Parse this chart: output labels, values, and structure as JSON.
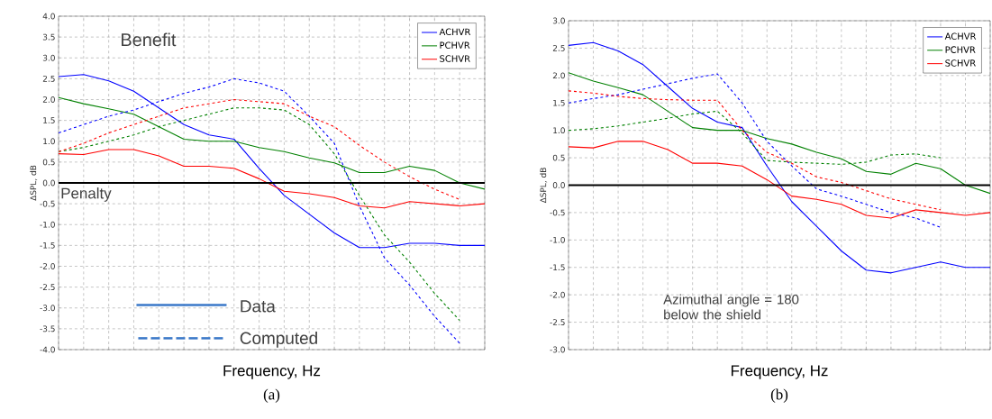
{
  "chart_data": [
    {
      "type": "line",
      "title": "(a)",
      "xlabel": "Frequency, Hz",
      "ylabel": "ΔSPL, dB",
      "categories": [
        null,
        null,
        null,
        null,
        null,
        null,
        null,
        null,
        null,
        null,
        null,
        null,
        null,
        null,
        null,
        null,
        null,
        null
      ],
      "series": [
        {
          "name": "ACHVR",
          "color": "#0000ff",
          "line_style": "solid",
          "values": [
            2.55,
            2.6,
            2.45,
            2.2,
            1.8,
            1.4,
            1.15,
            1.05,
            0.35,
            -0.3,
            -0.75,
            -1.2,
            -1.55,
            -1.55,
            -1.45,
            -1.45,
            -1.5,
            -1.5
          ]
        },
        {
          "name": "PCHVR",
          "color": "#008000",
          "line_style": "solid",
          "values": [
            2.05,
            1.9,
            1.78,
            1.65,
            1.35,
            1.05,
            1.0,
            1.0,
            0.85,
            0.75,
            0.6,
            0.48,
            0.25,
            0.25,
            0.4,
            0.3,
            0.0,
            -0.15
          ]
        },
        {
          "name": "SCHVR",
          "color": "#ff0000",
          "line_style": "solid",
          "values": [
            0.7,
            0.68,
            0.8,
            0.8,
            0.65,
            0.4,
            0.4,
            0.35,
            0.1,
            -0.2,
            -0.26,
            -0.35,
            -0.55,
            -0.6,
            -0.45,
            -0.5,
            -0.55,
            -0.5
          ]
        },
        {
          "color": "#0000ff",
          "line_style": "dashed",
          "values": [
            1.2,
            1.4,
            1.6,
            1.75,
            1.95,
            2.15,
            2.3,
            2.5,
            2.4,
            2.2,
            1.6,
            0.95,
            -0.55,
            -1.8,
            -2.45,
            -3.2,
            -3.85,
            null
          ]
        },
        {
          "color": "#008000",
          "line_style": "dashed",
          "values": [
            0.75,
            0.85,
            1.0,
            1.15,
            1.35,
            1.5,
            1.65,
            1.8,
            1.8,
            1.75,
            1.4,
            0.7,
            -0.3,
            -1.25,
            -1.9,
            -2.65,
            -3.3,
            null
          ]
        },
        {
          "color": "#ff0000",
          "line_style": "dashed",
          "values": [
            0.75,
            0.95,
            1.2,
            1.4,
            1.6,
            1.8,
            1.9,
            2.0,
            1.95,
            1.9,
            1.6,
            1.35,
            0.9,
            0.5,
            0.15,
            -0.15,
            -0.4,
            null
          ]
        }
      ],
      "ylim": [
        -4,
        4
      ],
      "yticks": [
        {
          "value": -4,
          "label": "-4.0"
        },
        {
          "value": -3.5,
          "label": "-3.5"
        },
        {
          "value": -3,
          "label": "-3.0"
        },
        {
          "value": -2.5,
          "label": "-2.5"
        },
        {
          "value": -2,
          "label": "-2.0"
        },
        {
          "value": -1.5,
          "label": "-1.5"
        },
        {
          "value": -1,
          "label": "-1.0"
        },
        {
          "value": -0.5,
          "label": "-0.5"
        },
        {
          "value": 0,
          "label": "0.0"
        },
        {
          "value": 0.5,
          "label": "0.5"
        },
        {
          "value": 1,
          "label": "1.0"
        },
        {
          "value": 1.5,
          "label": "1.5"
        },
        {
          "value": 2,
          "label": "2.0"
        },
        {
          "value": 2.5,
          "label": "2.5"
        },
        {
          "value": 3,
          "label": "3.0"
        },
        {
          "value": 3.5,
          "label": "3.5"
        },
        {
          "value": 4,
          "label": "4.0"
        }
      ],
      "tick_labels": "y",
      "grid": true,
      "legend": "top right",
      "ref_lines": [
        {
          "axis": "y",
          "value": 0,
          "color": "#000000"
        }
      ],
      "annotations": [
        "Benefit",
        "Penalty",
        "Data",
        "Computed"
      ]
    },
    {
      "type": "line",
      "title": "(b)",
      "xlabel": "Frequency, Hz",
      "ylabel": "ΔSPL, dB",
      "categories": [
        null,
        null,
        null,
        null,
        null,
        null,
        null,
        null,
        null,
        null,
        null,
        null,
        null,
        null,
        null,
        null,
        null,
        null
      ],
      "series": [
        {
          "name": "ACHVR",
          "color": "#0000ff",
          "line_style": "solid",
          "values": [
            2.55,
            2.6,
            2.45,
            2.2,
            1.8,
            1.4,
            1.15,
            1.05,
            0.35,
            -0.3,
            -0.75,
            -1.2,
            -1.55,
            -1.6,
            -1.5,
            -1.4,
            -1.5,
            -1.5
          ]
        },
        {
          "name": "PCHVR",
          "color": "#008000",
          "line_style": "solid",
          "values": [
            2.05,
            1.9,
            1.78,
            1.65,
            1.35,
            1.05,
            1.0,
            1.0,
            0.85,
            0.75,
            0.6,
            0.48,
            0.25,
            0.2,
            0.4,
            0.3,
            0.0,
            -0.15
          ]
        },
        {
          "name": "SCHVR",
          "color": "#ff0000",
          "line_style": "solid",
          "values": [
            0.7,
            0.68,
            0.8,
            0.8,
            0.65,
            0.4,
            0.4,
            0.35,
            0.1,
            -0.2,
            -0.26,
            -0.35,
            -0.55,
            -0.6,
            -0.45,
            -0.5,
            -0.55,
            -0.5
          ]
        },
        {
          "color": "#0000ff",
          "line_style": "dashed",
          "values": [
            1.5,
            1.58,
            1.65,
            1.75,
            1.85,
            1.95,
            2.03,
            1.5,
            0.8,
            0.35,
            -0.07,
            -0.2,
            -0.35,
            -0.5,
            -0.6,
            -0.77,
            null,
            null
          ]
        },
        {
          "color": "#008000",
          "line_style": "dashed",
          "values": [
            1.0,
            1.03,
            1.08,
            1.15,
            1.22,
            1.3,
            1.35,
            0.95,
            0.45,
            0.42,
            0.4,
            0.38,
            0.42,
            0.55,
            0.57,
            0.5,
            null,
            null
          ]
        },
        {
          "color": "#ff0000",
          "line_style": "dashed",
          "values": [
            1.72,
            1.68,
            1.62,
            1.58,
            1.56,
            1.55,
            1.55,
            1.0,
            0.6,
            0.4,
            0.15,
            0.05,
            -0.1,
            -0.25,
            -0.35,
            -0.45,
            null,
            null
          ]
        }
      ],
      "ylim": [
        -3,
        3
      ],
      "yticks": [
        {
          "value": -3,
          "label": "-3.0"
        },
        {
          "value": -2.5,
          "label": "-2.5"
        },
        {
          "value": -2,
          "label": "-2.0"
        },
        {
          "value": -1.5,
          "label": "-1.5"
        },
        {
          "value": -1,
          "label": "-1.0"
        },
        {
          "value": -0.5,
          "label": "-0.5"
        },
        {
          "value": 0,
          "label": "0.0"
        },
        {
          "value": 0.5,
          "label": "0.5"
        },
        {
          "value": 1,
          "label": "1.0"
        },
        {
          "value": 1.5,
          "label": "1.5"
        },
        {
          "value": 2,
          "label": "2.0"
        },
        {
          "value": 2.5,
          "label": "2.5"
        },
        {
          "value": 3,
          "label": "3.0"
        }
      ],
      "tick_labels": "y",
      "grid": true,
      "legend": "top right",
      "ref_lines": [
        {
          "axis": "y",
          "value": 0,
          "color": "#000000"
        }
      ],
      "annotations": [
        "Azimuthal angle = 180 below the shield"
      ]
    }
  ]
}
